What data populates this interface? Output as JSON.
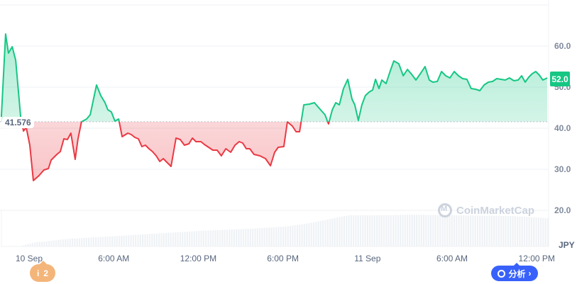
{
  "chart_data": {
    "type": "line",
    "currency": "JPY",
    "baseline_value": 41.576,
    "baseline_label": "41.576",
    "last_value_label": "52.0",
    "ylim": [
      12,
      70
    ],
    "y_ticks": [
      "60.0",
      "50.0",
      "40.0",
      "30.0",
      "20.0"
    ],
    "x_ticks": [
      "10 Sep",
      "6:00 AM",
      "12:00 PM",
      "6:00 PM",
      "11 Sep",
      "6:00 AM",
      "12:00 PM"
    ],
    "x_tick_times": [
      "09-10 00:00",
      "09-10 06:00",
      "09-10 12:00",
      "09-10 18:00",
      "09-11 00:00",
      "09-11 06:00",
      "09-11 12:00"
    ],
    "grid": true,
    "colors": {
      "up": "#16c784",
      "down": "#ea3943",
      "volume": "#eff2f5",
      "grid": "#eff2f5"
    },
    "series": [
      {
        "points": [
          [
            "09-09 22:02",
            42.76
          ],
          [
            "09-09 22:20",
            62.93
          ],
          [
            "09-09 22:32",
            58.28
          ],
          [
            "09-09 22:48",
            59.83
          ],
          [
            "09-09 23:03",
            56.55
          ],
          [
            "09-09 23:24",
            42.76
          ],
          [
            "09-09 23:36",
            39.31
          ],
          [
            "09-09 23:48",
            40.17
          ],
          [
            "09-10 00:03",
            35.86
          ],
          [
            "09-10 00:18",
            27.24
          ],
          [
            "09-10 00:42",
            28.45
          ],
          [
            "09-10 01:03",
            29.83
          ],
          [
            "09-10 01:22",
            30.17
          ],
          [
            "09-10 01:34",
            32.24
          ],
          [
            "09-10 01:58",
            33.62
          ],
          [
            "09-10 02:13",
            34.31
          ],
          [
            "09-10 02:28",
            37.41
          ],
          [
            "09-10 02:43",
            37.24
          ],
          [
            "09-10 02:58",
            38.79
          ],
          [
            "09-10 03:16",
            32.41
          ],
          [
            "09-10 03:28",
            37.41
          ],
          [
            "09-10 03:43",
            41.55
          ],
          [
            "09-10 04:05",
            42.24
          ],
          [
            "09-10 04:20",
            43.28
          ],
          [
            "09-10 04:47",
            50.52
          ],
          [
            "09-10 05:05",
            47.93
          ],
          [
            "09-10 05:23",
            46.21
          ],
          [
            "09-10 05:35",
            44.48
          ],
          [
            "09-10 05:50",
            43.97
          ],
          [
            "09-10 06:05",
            41.72
          ],
          [
            "09-10 06:21",
            42.24
          ],
          [
            "09-10 06:36",
            37.93
          ],
          [
            "09-10 07:00",
            38.79
          ],
          [
            "09-10 07:15",
            38.45
          ],
          [
            "09-10 07:30",
            37.76
          ],
          [
            "09-10 07:45",
            37.41
          ],
          [
            "09-10 08:00",
            35.52
          ],
          [
            "09-10 08:15",
            35.86
          ],
          [
            "09-10 08:30",
            35.0
          ],
          [
            "09-10 08:45",
            34.31
          ],
          [
            "09-10 09:01",
            33.28
          ],
          [
            "09-10 09:16",
            31.9
          ],
          [
            "09-10 09:31",
            32.59
          ],
          [
            "09-10 09:49",
            31.55
          ],
          [
            "09-10 10:04",
            30.69
          ],
          [
            "09-10 10:25",
            37.59
          ],
          [
            "09-10 10:43",
            37.24
          ],
          [
            "09-10 11:01",
            35.86
          ],
          [
            "09-10 11:20",
            36.21
          ],
          [
            "09-10 11:35",
            37.59
          ],
          [
            "09-10 11:50",
            36.72
          ],
          [
            "09-10 12:11",
            36.72
          ],
          [
            "09-10 12:26",
            36.03
          ],
          [
            "09-10 12:44",
            35.34
          ],
          [
            "09-10 13:02",
            34.66
          ],
          [
            "09-10 13:20",
            34.66
          ],
          [
            "09-10 13:38",
            33.28
          ],
          [
            "09-10 13:57",
            35.0
          ],
          [
            "09-10 14:18",
            34.14
          ],
          [
            "09-10 14:36",
            35.86
          ],
          [
            "09-10 14:54",
            36.72
          ],
          [
            "09-10 15:09",
            36.38
          ],
          [
            "09-10 15:24",
            35.0
          ],
          [
            "09-10 15:39",
            35.0
          ],
          [
            "09-10 15:57",
            33.62
          ],
          [
            "09-10 16:22",
            33.28
          ],
          [
            "09-10 16:46",
            32.59
          ],
          [
            "09-10 17:07",
            30.86
          ],
          [
            "09-10 17:25",
            34.14
          ],
          [
            "09-10 17:40",
            35.34
          ],
          [
            "09-10 18:04",
            35.52
          ],
          [
            "09-10 18:19",
            41.55
          ],
          [
            "09-10 18:40",
            40.52
          ],
          [
            "09-10 18:56",
            39.14
          ],
          [
            "09-10 19:11",
            39.14
          ],
          [
            "09-10 19:29",
            45.69
          ],
          [
            "09-10 19:53",
            45.86
          ],
          [
            "09-10 20:14",
            46.21
          ],
          [
            "09-10 20:35",
            44.83
          ],
          [
            "09-10 20:59",
            43.28
          ],
          [
            "09-10 21:14",
            41.03
          ],
          [
            "09-10 21:30",
            44.48
          ],
          [
            "09-10 21:45",
            46.21
          ],
          [
            "09-10 22:00",
            45.69
          ],
          [
            "09-10 22:18",
            49.66
          ],
          [
            "09-10 22:36",
            51.9
          ],
          [
            "09-10 22:54",
            47.07
          ],
          [
            "09-10 23:06",
            45.69
          ],
          [
            "09-10 23:21",
            41.9
          ],
          [
            "09-10 23:36",
            45.69
          ],
          [
            "09-10 23:51",
            47.93
          ],
          [
            "09-11 00:07",
            48.79
          ],
          [
            "09-11 00:22",
            49.31
          ],
          [
            "09-11 00:34",
            51.9
          ],
          [
            "09-11 00:49",
            49.66
          ],
          [
            "09-11 01:01",
            51.72
          ],
          [
            "09-11 01:19",
            50.86
          ],
          [
            "09-11 01:37",
            53.97
          ],
          [
            "09-11 01:52",
            56.38
          ],
          [
            "09-11 02:13",
            55.69
          ],
          [
            "09-11 02:32",
            52.76
          ],
          [
            "09-11 02:50",
            54.31
          ],
          [
            "09-11 03:08",
            53.1
          ],
          [
            "09-11 03:26",
            51.72
          ],
          [
            "09-11 03:47",
            53.45
          ],
          [
            "09-11 04:05",
            55.0
          ],
          [
            "09-11 04:23",
            51.72
          ],
          [
            "09-11 04:38",
            51.21
          ],
          [
            "09-11 04:57",
            51.38
          ],
          [
            "09-11 05:15",
            53.79
          ],
          [
            "09-11 05:33",
            52.76
          ],
          [
            "09-11 05:51",
            52.24
          ],
          [
            "09-11 06:09",
            53.79
          ],
          [
            "09-11 06:27",
            52.76
          ],
          [
            "09-11 06:45",
            52.07
          ],
          [
            "09-11 07:03",
            51.9
          ],
          [
            "09-11 07:21",
            49.66
          ],
          [
            "09-11 07:40",
            49.48
          ],
          [
            "09-11 07:58",
            49.14
          ],
          [
            "09-11 08:16",
            50.52
          ],
          [
            "09-11 08:34",
            51.21
          ],
          [
            "09-11 08:52",
            51.38
          ],
          [
            "09-11 09:10",
            52.07
          ],
          [
            "09-11 09:28",
            51.9
          ],
          [
            "09-11 09:46",
            51.72
          ],
          [
            "09-11 10:04",
            52.24
          ],
          [
            "09-11 10:23",
            51.55
          ],
          [
            "09-11 10:41",
            51.72
          ],
          [
            "09-11 10:56",
            52.76
          ],
          [
            "09-11 11:11",
            51.21
          ],
          [
            "09-11 11:26",
            52.41
          ],
          [
            "09-11 11:41",
            53.28
          ],
          [
            "09-11 11:56",
            53.79
          ],
          [
            "09-11 12:11",
            52.93
          ],
          [
            "09-11 12:26",
            51.72
          ],
          [
            "09-11 12:45",
            52.24
          ]
        ]
      }
    ],
    "volume_relative": [
      [
        "09-09 23:12",
        0
      ],
      [
        "09-10 00:27",
        12
      ],
      [
        "09-10 02:58",
        22
      ],
      [
        "09-10 04:44",
        26
      ],
      [
        "09-10 08:00",
        34
      ],
      [
        "09-10 12:02",
        44
      ],
      [
        "09-10 15:33",
        50
      ],
      [
        "09-10 18:04",
        56
      ],
      [
        "09-10 19:35",
        64
      ],
      [
        "09-10 21:36",
        80
      ],
      [
        "09-10 22:36",
        88
      ],
      [
        "09-11 01:07",
        88
      ],
      [
        "09-11 03:08",
        90
      ],
      [
        "09-11 06:39",
        88
      ],
      [
        "09-11 10:11",
        86
      ],
      [
        "09-11 12:42",
        80
      ]
    ]
  },
  "watermark": "CoinMarketCap",
  "info_badge": {
    "icon": "info-icon",
    "count": "2"
  },
  "analysis_button": {
    "label": "分析",
    "icon": "chart-bubble-icon",
    "arrow": "›"
  }
}
